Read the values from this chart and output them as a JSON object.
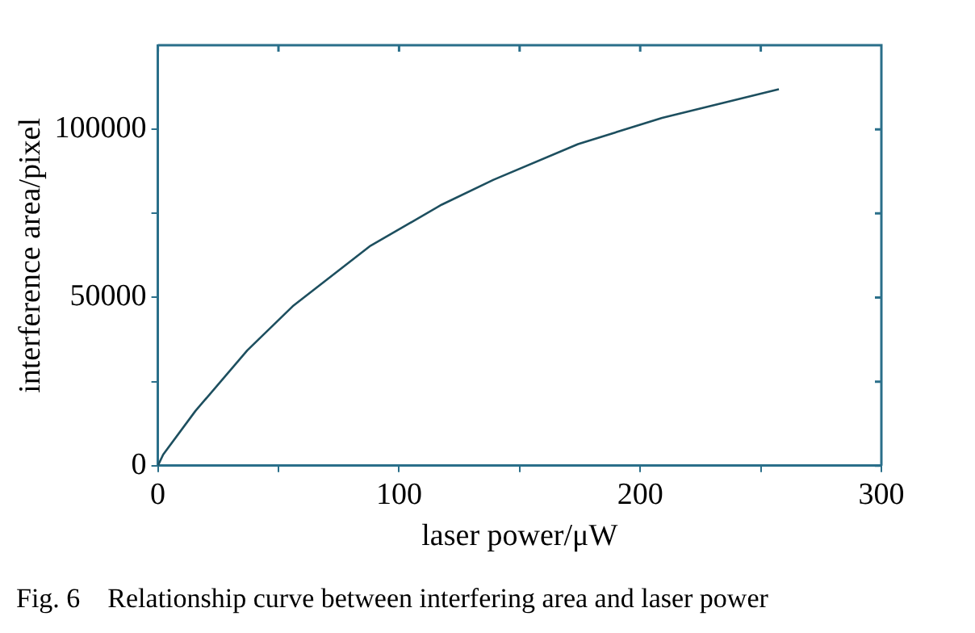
{
  "chart_data": {
    "type": "line",
    "xlabel": "laser power/μW",
    "ylabel": "interference area/pixel",
    "annotations": [
      "Fig. 6    Relationship curve between interfering area and laser power"
    ],
    "x": [
      0,
      2.2,
      15.6,
      37.1,
      55.9,
      88.2,
      117.7,
      139.2,
      174.2,
      209.1,
      257.5
    ],
    "series": [
      {
        "color": "#1d4f5f",
        "values": [
          0,
          3300,
          16300,
          34300,
          47400,
          65400,
          77600,
          85000,
          95600,
          103400,
          111900
        ]
      }
    ],
    "xlim": [
      0,
      300
    ],
    "xticks": [
      0,
      {
        "value": 50,
        "label": null
      },
      100,
      {
        "value": 150,
        "label": null
      },
      200,
      {
        "value": 250,
        "label": null
      },
      300
    ],
    "ylim": [
      0,
      125000
    ],
    "yticks": [
      0,
      {
        "value": 25000,
        "label": null
      },
      50000,
      {
        "value": 75000,
        "label": null
      },
      100000
    ],
    "grid": false,
    "legend": false,
    "marker": "none",
    "line_style": "solid"
  }
}
